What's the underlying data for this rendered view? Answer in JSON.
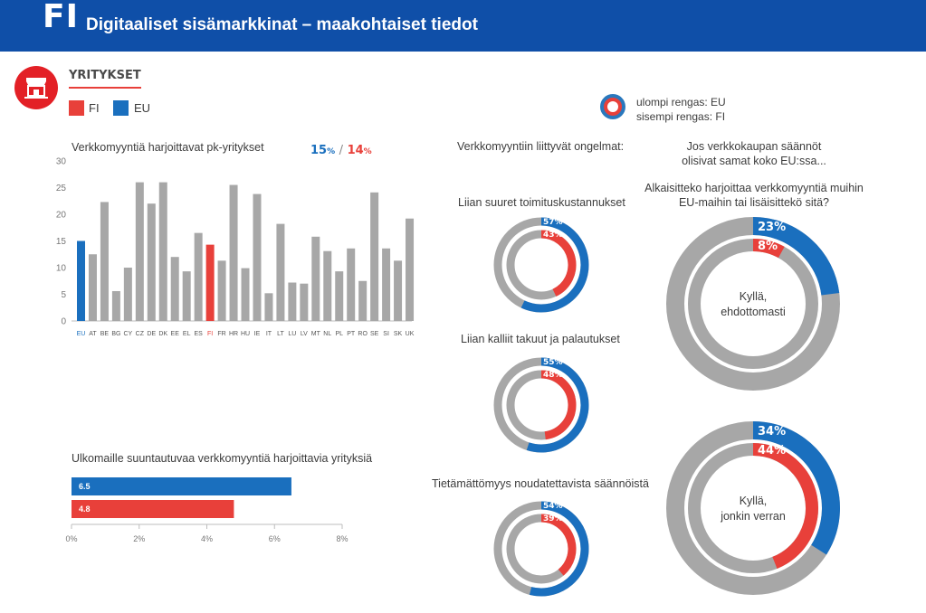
{
  "header": {
    "country_code": "FI",
    "title": "Digitaaliset sisämarkkinat – maakohtaiset tiedot"
  },
  "section": {
    "title": "YRITYKSET",
    "icon": "shop-icon"
  },
  "legend": [
    {
      "label": "FI",
      "color": "#e8403a"
    },
    {
      "label": "EU",
      "color": "#1a6fbe"
    }
  ],
  "ring_legend": {
    "outer": "ulompi rengas: EU",
    "inner": "sisempi rengas: FI"
  },
  "colors": {
    "eu": "#1a6fbe",
    "fi": "#e8403a",
    "grey": "#a7a7a7",
    "header": "#0f4fa8"
  },
  "headline": {
    "eu_value": "15",
    "fi_value": "14",
    "unit": "%",
    "separator": "/"
  },
  "labels": {
    "problems_heading": "Verkkomyyntiin liittyvät ongelmat:",
    "question_line1": "Jos verkkokaupan säännöt",
    "question_line2": "olisivat samat koko EU:ssa...",
    "question_line3": "Alkaisitteko harjoittaa verkkomyyntiä muihin",
    "question_line4": "EU-maihin tai lisäisittekö sitä?"
  },
  "chart_data": [
    {
      "type": "bar",
      "title": "Verkkomyyntiä harjoittavat pk-yritykset",
      "categories": [
        "EU",
        "AT",
        "BE",
        "BG",
        "CY",
        "CZ",
        "DE",
        "DK",
        "EE",
        "EL",
        "ES",
        "FI",
        "FR",
        "HR",
        "HU",
        "IE",
        "IT",
        "LT",
        "LU",
        "LV",
        "MT",
        "NL",
        "PL",
        "PT",
        "RO",
        "SE",
        "SI",
        "SK",
        "UK"
      ],
      "values": [
        15,
        12.5,
        22.3,
        5.6,
        10,
        26,
        22,
        26,
        12,
        9.3,
        16.5,
        14.3,
        11.3,
        25.5,
        9.9,
        23.8,
        5.2,
        18.2,
        7.2,
        7,
        15.8,
        13.1,
        9.3,
        13.6,
        7.5,
        24.1,
        13.6,
        11.3,
        19.2
      ],
      "highlight": {
        "EU": "#1a6fbe",
        "FI": "#e8403a"
      },
      "ylim": [
        0,
        30
      ],
      "yticks": [
        0,
        5,
        10,
        15,
        20,
        25,
        30
      ],
      "grid": false
    },
    {
      "type": "bar",
      "orientation": "horizontal",
      "title": "Ulkomaille suuntautuvaa verkkomyyntiä harjoittavia yrityksiä",
      "series": [
        {
          "name": "EU",
          "value": 6.5,
          "label": "6.5"
        },
        {
          "name": "FI",
          "value": 4.8,
          "label": "4.8"
        }
      ],
      "xlim": [
        0,
        8
      ],
      "xticks": [
        "0%",
        "2%",
        "4%",
        "6%",
        "8%"
      ]
    },
    {
      "type": "pie",
      "title": "Liian suuret toimituskustannukset",
      "series": [
        {
          "name": "EU",
          "value": 57,
          "label": "57%"
        },
        {
          "name": "FI",
          "value": 43,
          "label": "43%"
        }
      ]
    },
    {
      "type": "pie",
      "title": "Liian kalliit takuut ja palautukset",
      "series": [
        {
          "name": "EU",
          "value": 55,
          "label": "55%"
        },
        {
          "name": "FI",
          "value": 48,
          "label": "48%"
        }
      ]
    },
    {
      "type": "pie",
      "title": "Tietämättömyys noudatettavista säännöistä",
      "series": [
        {
          "name": "EU",
          "value": 54,
          "label": "54%"
        },
        {
          "name": "FI",
          "value": 39,
          "label": "39%"
        }
      ]
    },
    {
      "type": "pie",
      "center_line1": "Kyllä,",
      "center_line2": "ehdottomasti",
      "series": [
        {
          "name": "EU",
          "value": 23,
          "label": "23%"
        },
        {
          "name": "FI",
          "value": 8,
          "label": "8%"
        }
      ]
    },
    {
      "type": "pie",
      "center_line1": "Kyllä,",
      "center_line2": "jonkin verran",
      "series": [
        {
          "name": "EU",
          "value": 34,
          "label": "34%"
        },
        {
          "name": "FI",
          "value": 44,
          "label": "44%"
        }
      ]
    }
  ]
}
